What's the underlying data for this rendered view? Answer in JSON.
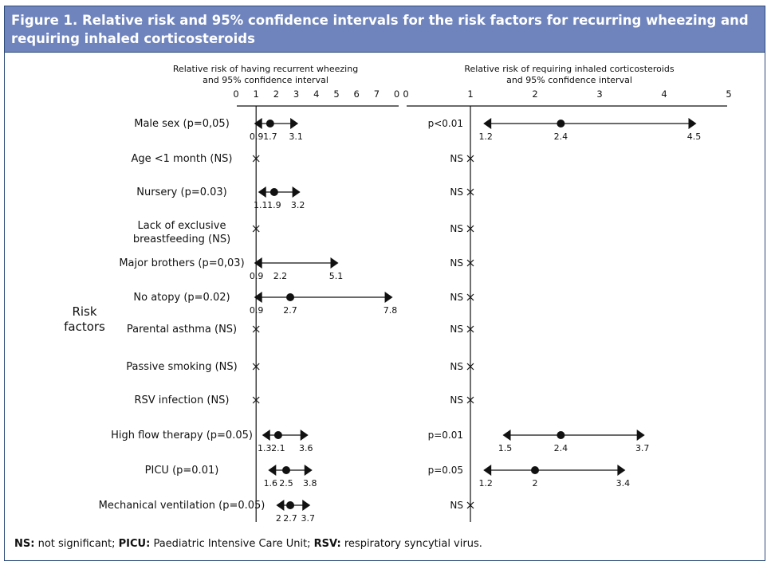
{
  "figure": {
    "title": "Figure 1.  Relative risk and 95% confidence intervals for the risk factors for recurring wheezing and requiring inhaled corticosteroids",
    "header_color": "#6f84bd",
    "border_color": "#2c4a78"
  },
  "chart_data": {
    "type": "forest",
    "row_axis_label": [
      "Risk",
      "factors"
    ],
    "rows": [
      {
        "label": [
          "Male sex  (p=0,05)"
        ]
      },
      {
        "label": [
          "Age <1 month (NS)"
        ]
      },
      {
        "label": [
          "Nursery (p=0.03)"
        ]
      },
      {
        "label": [
          "Lack of exclusive",
          "breastfeeding (NS)"
        ]
      },
      {
        "label": [
          "Major brothers (p=0,03)"
        ]
      },
      {
        "label": [
          "No atopy (p=0.02)"
        ]
      },
      {
        "label": [
          "Parental asthma (NS)"
        ]
      },
      {
        "label": [
          "Passive smoking (NS)"
        ]
      },
      {
        "label": [
          "RSV infection (NS)"
        ]
      },
      {
        "label": [
          "High flow therapy (p=0.05)"
        ]
      },
      {
        "label": [
          "PICU (p=0.01)"
        ]
      },
      {
        "label": [
          "Mechanical ventilation (p=0.05)"
        ]
      }
    ],
    "panels": [
      {
        "title": [
          "Relative risk of having recurrent wheezing",
          "and 95% confidence interval"
        ],
        "tick_labels": [
          "0",
          "1",
          "2",
          "3",
          "4",
          "5",
          "6",
          "7",
          "0"
        ],
        "xlim": [
          0,
          8
        ],
        "reference": 1,
        "entries": [
          {
            "lo": 0.9,
            "est": 1.7,
            "hi": 3.1,
            "lo_label": "0.9",
            "est_label": "1.7",
            "hi_label": "3.1"
          },
          {
            "ns": true
          },
          {
            "lo": 1.1,
            "est": 1.9,
            "hi": 3.2,
            "lo_label": "1.1",
            "est_label": "1.9",
            "hi_label": "3.2"
          },
          {
            "ns": true
          },
          {
            "lo": 0.9,
            "est": 2.2,
            "hi": 5.1,
            "lo_label": "0.9",
            "est_label": "2.2",
            "hi_label": "5.1",
            "est_marker": false
          },
          {
            "lo": 0.9,
            "est": 2.7,
            "hi": 7.8,
            "lo_label": "0.9",
            "est_label": "2.7",
            "hi_label": "7.8"
          },
          {
            "ns": true
          },
          {
            "ns": true
          },
          {
            "ns": true
          },
          {
            "lo": 1.3,
            "est": 2.1,
            "hi": 3.6,
            "lo_label": "1.3",
            "est_label": "2.1",
            "hi_label": "3.6"
          },
          {
            "lo": 1.6,
            "est": 2.5,
            "hi": 3.8,
            "lo_label": "1.6",
            "est_label": "2.5",
            "hi_label": "3.8"
          },
          {
            "lo": 2.0,
            "est": 2.7,
            "hi": 3.7,
            "lo_label": "2",
            "est_label": "2.7",
            "hi_label": "3.7"
          }
        ]
      },
      {
        "title": [
          "Relative risk of requiring inhaled corticosteroids",
          "and 95% confidence interval"
        ],
        "tick_labels": [
          "0",
          "1",
          "2",
          "3",
          "4",
          "5"
        ],
        "xlim": [
          0,
          5
        ],
        "reference": 1,
        "entries": [
          {
            "p": "p<0.01",
            "lo": 1.2,
            "est": 2.4,
            "hi": 4.5,
            "lo_label": "1.2",
            "est_label": "2.4",
            "hi_label": "4.5"
          },
          {
            "ns": true,
            "p": "NS"
          },
          {
            "ns": true,
            "p": "NS"
          },
          {
            "ns": true,
            "p": "NS"
          },
          {
            "ns": true,
            "p": "NS"
          },
          {
            "ns": true,
            "p": "NS"
          },
          {
            "ns": true,
            "p": "NS"
          },
          {
            "ns": true,
            "p": "NS"
          },
          {
            "ns": true,
            "p": "NS"
          },
          {
            "p": "p=0.01",
            "lo": 1.5,
            "est": 2.4,
            "hi": 3.7,
            "lo_label": "1.5",
            "est_label": "2.4",
            "hi_label": "3.7"
          },
          {
            "p": "p=0.05",
            "lo": 1.2,
            "est": 2.0,
            "hi": 3.4,
            "lo_label": "1.2",
            "est_label": "2",
            "hi_label": "3.4"
          },
          {
            "ns": true,
            "p": "NS"
          }
        ]
      }
    ]
  },
  "footnote": [
    {
      "abbr": "NS:",
      "text": " not significant; "
    },
    {
      "abbr": "PICU:",
      "text": " Paediatric Intensive Care Unit; "
    },
    {
      "abbr": "RSV:",
      "text": " respiratory syncytial virus."
    }
  ]
}
